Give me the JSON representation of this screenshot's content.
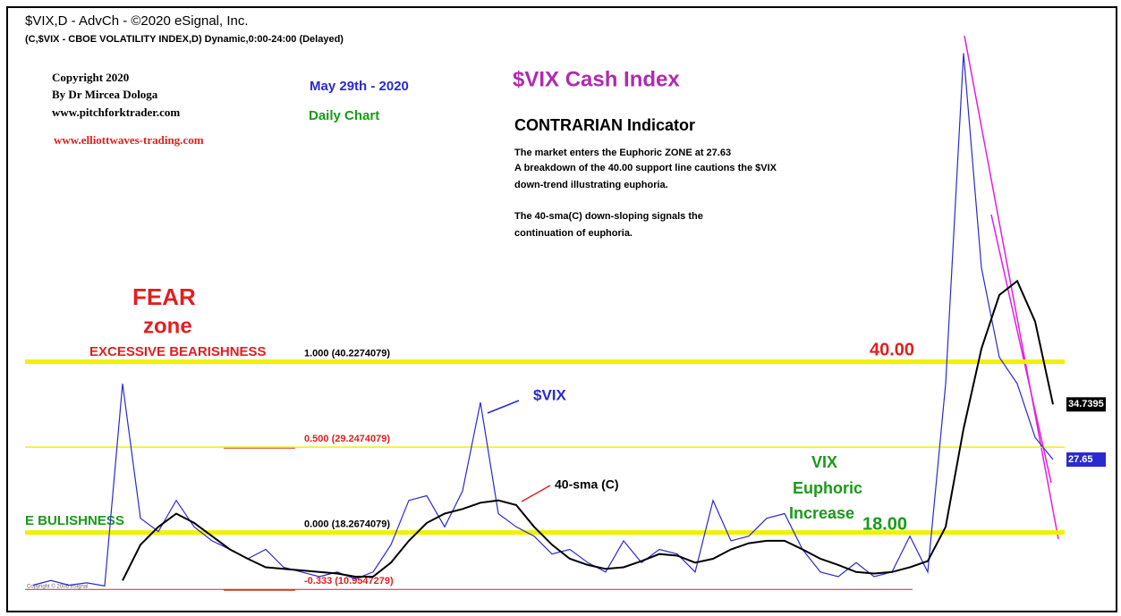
{
  "chart_data": {
    "type": "line",
    "title": "$VIX,D - AdvCh - ©2020 eSignal, Inc.",
    "subtitle": "(C,$VIX - CBOE VOLATILITY INDEX,D) Dynamic,0:00-24:00 (Delayed)",
    "annotations": {
      "copyright": "Copyright 2020",
      "author": "By Dr Mircea Dologa",
      "site1": "www.pitchforktrader.com",
      "site2": "www.elliottwaves-trading.com",
      "date": "May 29th - 2020",
      "period": "Daily Chart",
      "headline": "$VIX Cash Index",
      "indicator": "CONTRARIAN Indicator",
      "note1": "The market enters the Euphoric ZONE at 27.63",
      "note2": "A breakdown of the 40.00 support line cautions the $VIX",
      "note3": "down-trend illustrating euphoria.",
      "note4": "The 40-sma(C) down-sloping signals the",
      "note5": "continuation of euphoria.",
      "fear": "FEAR",
      "zone": "zone",
      "bearish": "EXCESSIVE BEARISHNESS",
      "bullish": "E BULISHNESS",
      "level40": "40.00",
      "level18": "18.00",
      "vix_label": "$VIX",
      "sma_label": "40-sma (C)",
      "euphoric1": "VIX",
      "euphoric2": "Euphoric",
      "euphoric3": "Increase",
      "esignal": "Copyright © 2006 eSignal"
    },
    "levels": [
      {
        "value": 40.2274079,
        "label": "1.000 (40.2274079)"
      },
      {
        "value": 29.2474079,
        "label": "0.500 (29.2474079)"
      },
      {
        "value": 18.2674079,
        "label": "0.000 (18.2674079)"
      },
      {
        "value": 10.9547279,
        "label": "-0.333 (10.9547279)"
      }
    ],
    "ylim": [
      8,
      85
    ],
    "series": [
      {
        "name": "$VIX",
        "color": "#2a2ad0",
        "values": [
          11.5,
          12.1,
          11.5,
          11.8,
          11.4,
          37.4,
          20.1,
          18.4,
          22.4,
          19.0,
          17.2,
          16.1,
          14.9,
          16.1,
          13.8,
          13.2,
          12.6,
          13.2,
          12.3,
          13.2,
          16.7,
          22.4,
          23.0,
          19.0,
          23.6,
          35.0,
          20.7,
          19.0,
          17.8,
          15.5,
          16.1,
          14.4,
          13.2,
          17.2,
          14.4,
          16.1,
          15.5,
          13.2,
          22.4,
          17.2,
          17.8,
          20.1,
          20.7,
          16.1,
          13.2,
          12.6,
          14.4,
          12.6,
          13.2,
          17.8,
          13.2,
          37.4,
          79.9,
          52.3,
          40.8,
          37.4,
          30.5,
          27.65
        ]
      },
      {
        "name": "40-sma (C)",
        "color": "#000000",
        "values": [
          null,
          null,
          null,
          null,
          null,
          12.1,
          16.7,
          19.0,
          20.7,
          19.5,
          17.8,
          16.1,
          14.9,
          13.8,
          13.6,
          13.4,
          13.2,
          13.0,
          12.6,
          12.6,
          14.4,
          17.2,
          19.5,
          20.7,
          21.3,
          22.1,
          22.4,
          21.8,
          19.0,
          16.7,
          14.9,
          14.1,
          13.6,
          13.8,
          14.6,
          15.5,
          15.3,
          14.4,
          14.9,
          16.1,
          16.9,
          17.2,
          17.2,
          16.1,
          14.9,
          14.1,
          13.2,
          13.0,
          13.2,
          13.8,
          14.6,
          19.0,
          31.6,
          41.9,
          48.8,
          50.6,
          45.4,
          34.7395
        ]
      }
    ]
  }
}
